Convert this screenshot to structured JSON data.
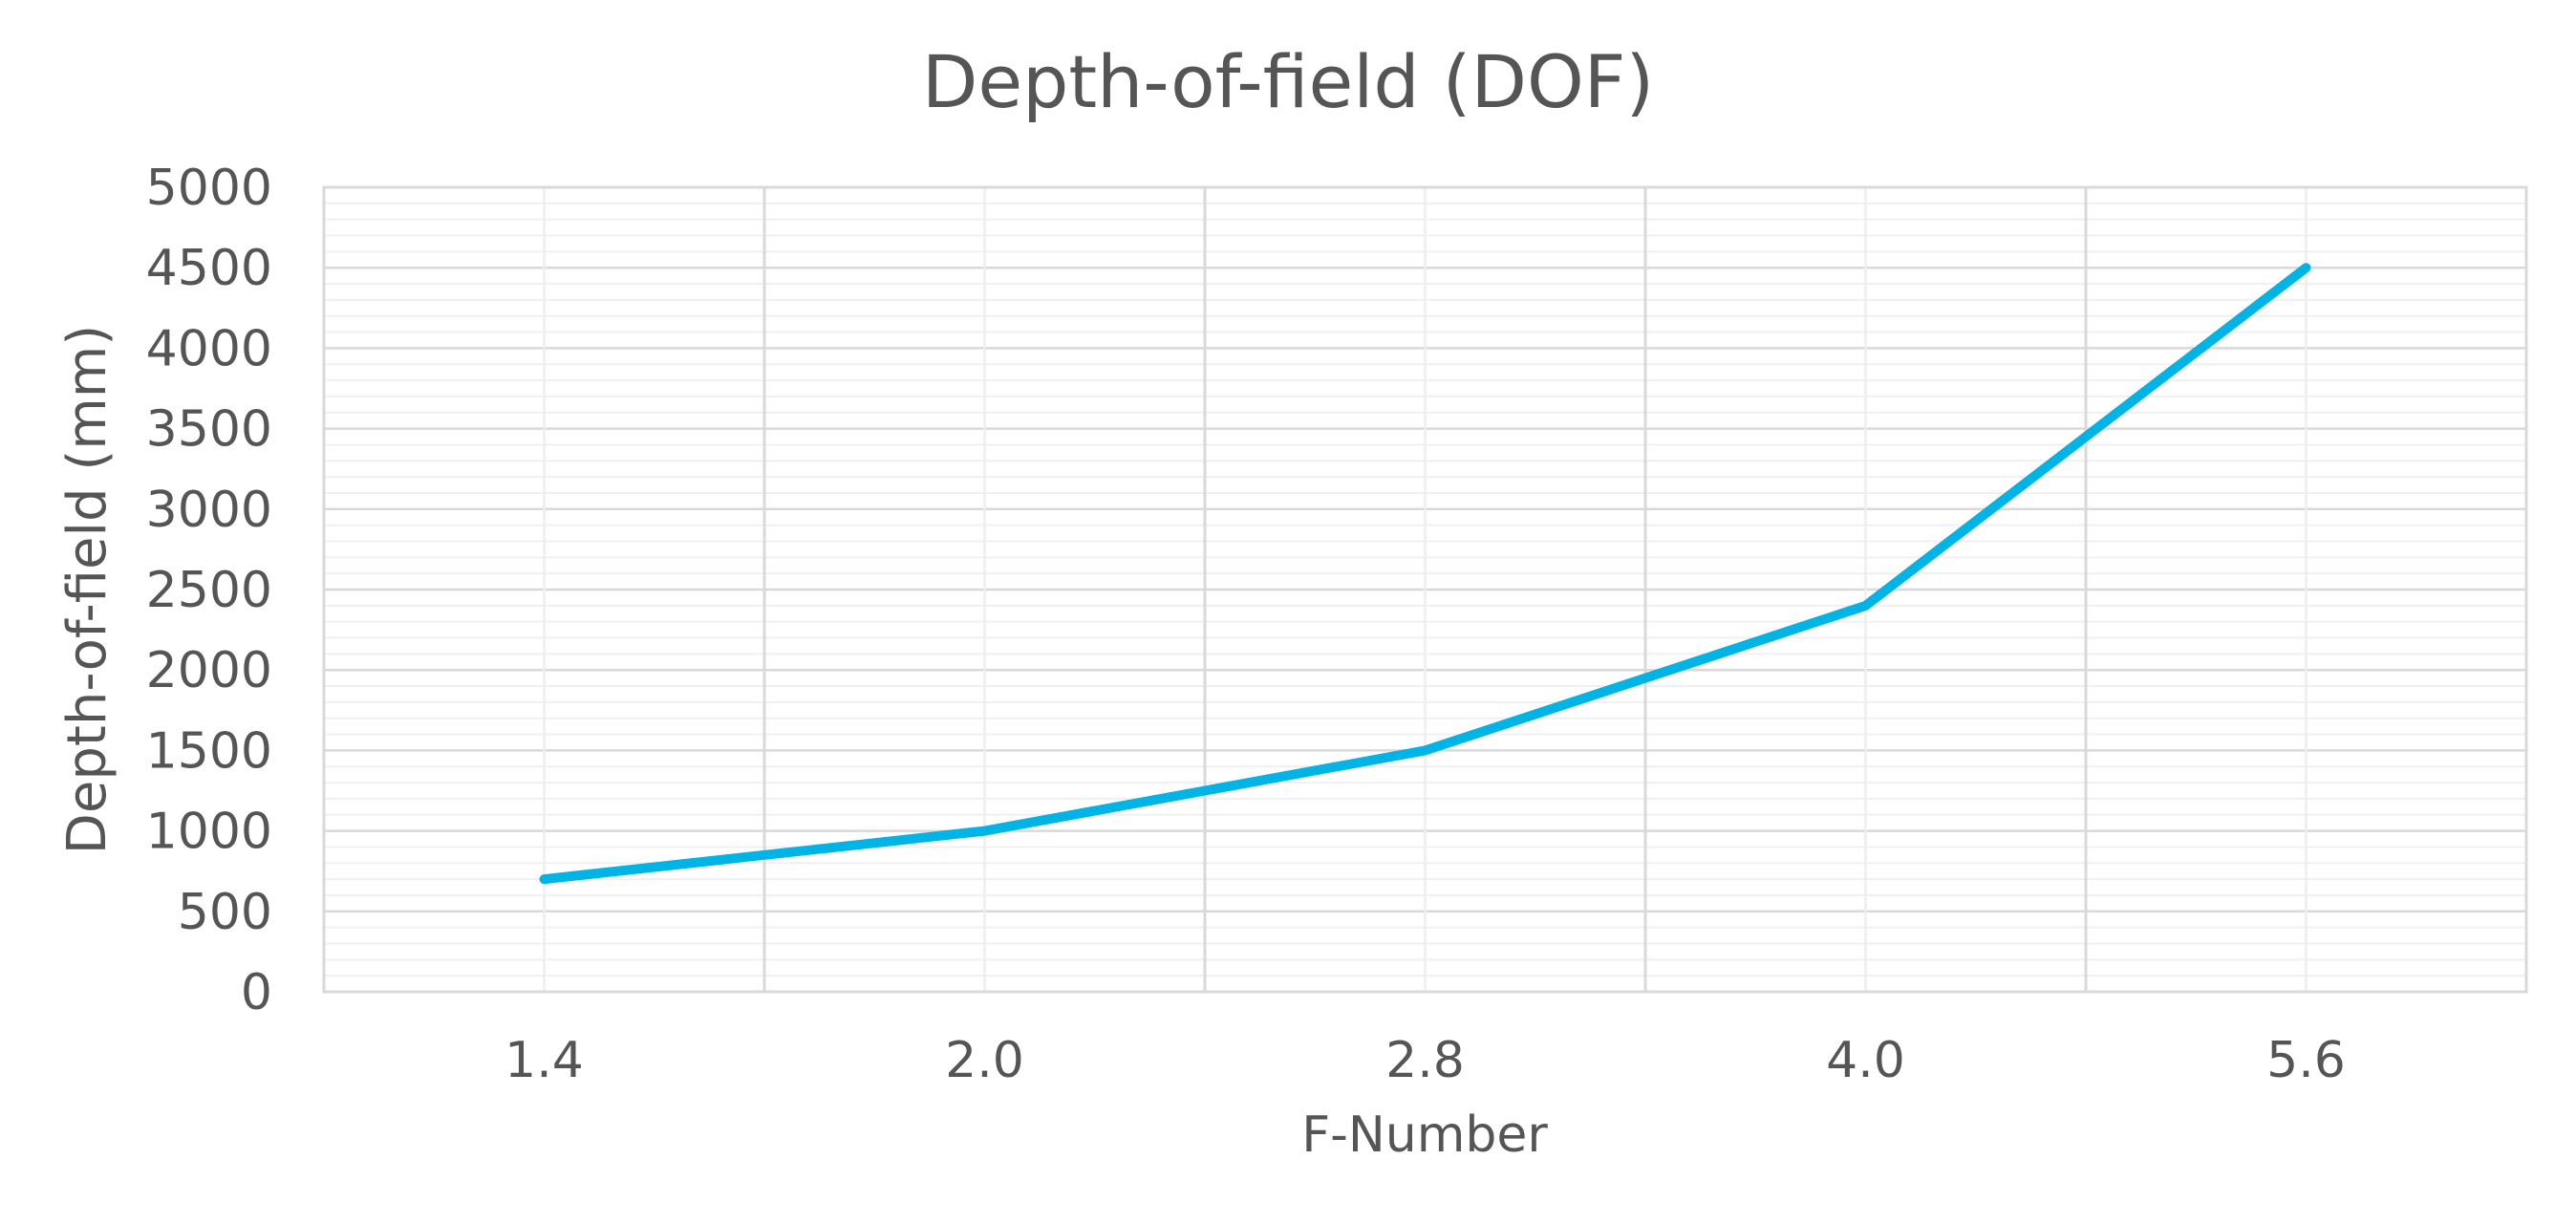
{
  "chart_data": {
    "type": "line",
    "title": "Depth-of-field (DOF)",
    "xlabel": "F-Number",
    "ylabel": "Depth-of-field (mm)",
    "categories": [
      "1.4",
      "2.0",
      "2.8",
      "4.0",
      "5.6"
    ],
    "series": [
      {
        "values": [
          700,
          1000,
          1500,
          2400,
          4500
        ],
        "color": "#00b4e6"
      }
    ],
    "ylim": [
      0,
      5000
    ],
    "y_major_step": 500,
    "y_minor_step": 100,
    "y_ticks": [
      "0",
      "500",
      "1000",
      "1500",
      "2000",
      "2500",
      "3000",
      "3500",
      "4000",
      "4500",
      "5000"
    ],
    "grid": true,
    "legend": "none"
  }
}
